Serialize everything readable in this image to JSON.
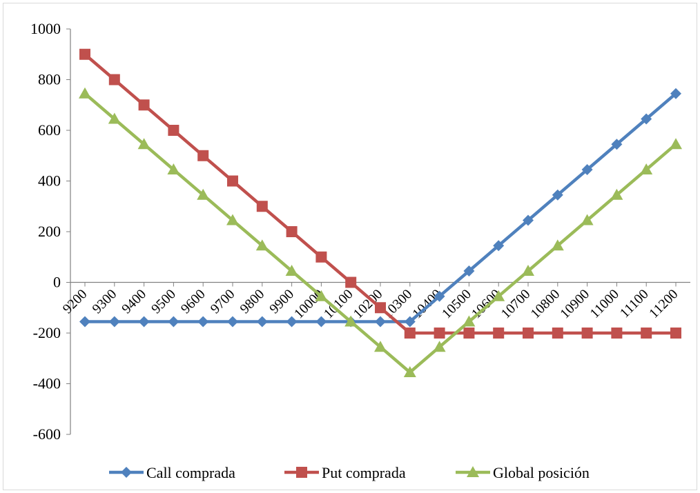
{
  "chart_data": {
    "type": "line",
    "title": "",
    "xlabel": "",
    "ylabel": "",
    "ylim": [
      -600,
      1000
    ],
    "yticks": [
      -600,
      -400,
      -200,
      0,
      200,
      400,
      600,
      800,
      1000
    ],
    "grid": false,
    "legend_position": "bottom",
    "categories": [
      "9200",
      "9300",
      "9400",
      "9500",
      "9600",
      "9700",
      "9800",
      "9900",
      "10000",
      "10100",
      "10200",
      "10300",
      "10400",
      "10500",
      "10600",
      "10700",
      "10800",
      "10900",
      "11000",
      "11100",
      "11200"
    ],
    "series": [
      {
        "name": "Call comprada",
        "color": "#4f81bd",
        "marker": "diamond",
        "values": [
          -155,
          -155,
          -155,
          -155,
          -155,
          -155,
          -155,
          -155,
          -155,
          -155,
          -155,
          -155,
          -55,
          45,
          145,
          245,
          345,
          445,
          545,
          645,
          745
        ]
      },
      {
        "name": "Put comprada",
        "color": "#c0504d",
        "marker": "square",
        "values": [
          900,
          800,
          700,
          600,
          500,
          400,
          300,
          200,
          100,
          0,
          -100,
          -200,
          -200,
          -200,
          -200,
          -200,
          -200,
          -200,
          -200,
          -200,
          -200
        ]
      },
      {
        "name": "Global posición",
        "color": "#9bbb59",
        "marker": "triangle",
        "values": [
          745,
          645,
          545,
          445,
          345,
          245,
          145,
          45,
          -55,
          -155,
          -255,
          -355,
          -255,
          -155,
          -55,
          45,
          145,
          245,
          345,
          445,
          545
        ]
      }
    ]
  }
}
